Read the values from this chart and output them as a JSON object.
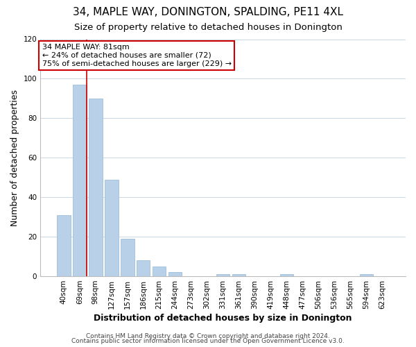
{
  "title": "34, MAPLE WAY, DONINGTON, SPALDING, PE11 4XL",
  "subtitle": "Size of property relative to detached houses in Donington",
  "xlabel": "Distribution of detached houses by size in Donington",
  "ylabel": "Number of detached properties",
  "bar_labels": [
    "40sqm",
    "69sqm",
    "98sqm",
    "127sqm",
    "157sqm",
    "186sqm",
    "215sqm",
    "244sqm",
    "273sqm",
    "302sqm",
    "331sqm",
    "361sqm",
    "390sqm",
    "419sqm",
    "448sqm",
    "477sqm",
    "506sqm",
    "536sqm",
    "565sqm",
    "594sqm",
    "623sqm"
  ],
  "bar_values": [
    31,
    97,
    90,
    49,
    19,
    8,
    5,
    2,
    0,
    0,
    1,
    1,
    0,
    0,
    1,
    0,
    0,
    0,
    0,
    1,
    0
  ],
  "bar_color": "#b8d0e8",
  "bar_edge_color": "#9fbfda",
  "vline_color": "#cc0000",
  "vline_x": 1.43,
  "annotation_text": "34 MAPLE WAY: 81sqm\n← 24% of detached houses are smaller (72)\n75% of semi-detached houses are larger (229) →",
  "annotation_box_edgecolor": "#cc0000",
  "annotation_box_facecolor": "#ffffff",
  "ylim": [
    0,
    120
  ],
  "yticks": [
    0,
    20,
    40,
    60,
    80,
    100,
    120
  ],
  "footer_line1": "Contains HM Land Registry data © Crown copyright and database right 2024.",
  "footer_line2": "Contains public sector information licensed under the Open Government Licence v3.0.",
  "background_color": "#ffffff",
  "grid_color": "#c8d8e8",
  "title_fontsize": 11,
  "subtitle_fontsize": 9.5,
  "axis_label_fontsize": 9,
  "tick_fontsize": 7.5,
  "annotation_fontsize": 8,
  "footer_fontsize": 6.5
}
